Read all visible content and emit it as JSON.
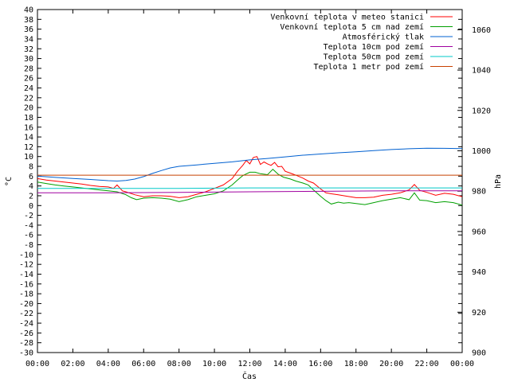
{
  "chart_data": {
    "type": "line",
    "xlabel": "Čas",
    "ylabel": "°C",
    "y2label": "hPa",
    "x_ticks": [
      "00:00",
      "02:00",
      "04:00",
      "06:00",
      "08:00",
      "10:00",
      "12:00",
      "14:00",
      "16:00",
      "18:00",
      "20:00",
      "22:00",
      "00:00"
    ],
    "xlim": [
      0,
      24
    ],
    "ylim": [
      -30,
      40
    ],
    "y_ticks": [
      -30,
      -28,
      -26,
      -24,
      -22,
      -20,
      -18,
      -16,
      -14,
      -12,
      -10,
      -8,
      -6,
      -4,
      -2,
      0,
      2,
      4,
      6,
      8,
      10,
      12,
      14,
      16,
      18,
      20,
      22,
      24,
      26,
      28,
      30,
      32,
      34,
      36,
      38,
      40
    ],
    "y2lim": [
      900,
      1070
    ],
    "y2_ticks": [
      900,
      920,
      940,
      960,
      980,
      1000,
      1020,
      1040,
      1060
    ],
    "grid": false,
    "legend_position": "top-right",
    "series": [
      {
        "name": "Venkovní teplota v meteo stanici",
        "axis": "left",
        "color": "#ff0000",
        "x": [
          0,
          0.5,
          1,
          1.5,
          2,
          2.5,
          3,
          3.5,
          4,
          4.3,
          4.5,
          4.8,
          5,
          5.5,
          6,
          6.5,
          7,
          7.5,
          8,
          8.5,
          9,
          9.5,
          10,
          10.5,
          11,
          11.3,
          11.6,
          11.8,
          12,
          12.2,
          12.4,
          12.6,
          12.8,
          13,
          13.2,
          13.4,
          13.6,
          13.8,
          14,
          14.3,
          14.6,
          15,
          15.3,
          15.6,
          16,
          16.3,
          16.6,
          17,
          17.5,
          18,
          18.5,
          19,
          19.5,
          20,
          20.5,
          21,
          21.3,
          21.6,
          22,
          22.5,
          23,
          23.5,
          24
        ],
        "y": [
          5.5,
          5.2,
          5.0,
          4.8,
          4.6,
          4.4,
          4.1,
          3.9,
          3.8,
          3.5,
          4.2,
          3.0,
          2.8,
          2.2,
          1.8,
          2.0,
          2.0,
          1.9,
          1.6,
          1.8,
          2.3,
          2.8,
          3.5,
          4.2,
          5.5,
          7.0,
          8.2,
          9.2,
          8.5,
          9.8,
          10.0,
          8.4,
          8.9,
          8.5,
          8.2,
          8.8,
          7.9,
          8.0,
          7.0,
          6.6,
          6.2,
          5.6,
          5.0,
          4.6,
          3.4,
          2.6,
          2.4,
          2.2,
          1.9,
          1.6,
          1.6,
          1.7,
          2.1,
          2.3,
          2.6,
          3.2,
          4.3,
          3.1,
          2.7,
          2.1,
          2.5,
          2.3,
          1.8
        ]
      },
      {
        "name": "Venkovní teplota 5 cm nad zemí",
        "axis": "left",
        "color": "#00a000",
        "x": [
          0,
          0.5,
          1,
          1.5,
          2,
          2.5,
          3,
          3.5,
          4,
          4.5,
          5,
          5.3,
          5.6,
          6,
          6.5,
          7,
          7.5,
          8,
          8.5,
          9,
          9.5,
          10,
          10.5,
          11,
          11.3,
          11.6,
          12,
          12.3,
          12.6,
          13,
          13.3,
          13.6,
          13.9,
          14.3,
          14.6,
          15,
          15.3,
          15.6,
          16,
          16.3,
          16.6,
          17,
          17.3,
          17.6,
          18,
          18.5,
          19,
          19.5,
          20,
          20.5,
          21,
          21.3,
          21.6,
          22,
          22.5,
          23,
          23.5,
          24
        ],
        "y": [
          4.8,
          4.5,
          4.2,
          4.0,
          3.8,
          3.6,
          3.4,
          3.2,
          3.0,
          2.8,
          2.2,
          1.6,
          1.2,
          1.5,
          1.6,
          1.5,
          1.3,
          0.8,
          1.2,
          1.8,
          2.1,
          2.4,
          3.0,
          4.2,
          5.2,
          6.1,
          6.8,
          6.8,
          6.5,
          6.3,
          7.4,
          6.4,
          5.8,
          5.4,
          5.0,
          4.6,
          4.2,
          3.2,
          1.9,
          1.0,
          0.3,
          0.7,
          0.5,
          0.6,
          0.4,
          0.2,
          0.6,
          1.0,
          1.3,
          1.6,
          1.2,
          2.6,
          1.1,
          1.0,
          0.6,
          0.8,
          0.6,
          0.1
        ]
      },
      {
        "name": "Atmosférický tlak",
        "axis": "right",
        "color": "#0060d0",
        "x": [
          0,
          1,
          2,
          3,
          4,
          4.5,
          5,
          5.5,
          6,
          6.5,
          7,
          7.5,
          8,
          9,
          10,
          11,
          12,
          13,
          14,
          15,
          16,
          17,
          18,
          19,
          20,
          21,
          22,
          23,
          24
        ],
        "y": [
          987.5,
          986.8,
          986.3,
          985.8,
          985.2,
          985.0,
          985.3,
          986.0,
          987.2,
          988.8,
          990.2,
          991.5,
          992.3,
          993.0,
          993.8,
          994.5,
          995.5,
          996.2,
          997.0,
          997.8,
          998.4,
          999.0,
          999.5,
          1000.1,
          1000.6,
          1001.0,
          1001.3,
          1001.2,
          1001.1
        ]
      },
      {
        "name": "Teplota 10cm pod zemí",
        "axis": "left",
        "color": "#a000a0",
        "x": [
          0,
          4,
          8,
          12,
          16,
          20,
          24
        ],
        "y": [
          2.6,
          2.6,
          2.7,
          2.8,
          2.9,
          3.0,
          3.0
        ]
      },
      {
        "name": "Teplota 50cm pod zemí",
        "axis": "left",
        "color": "#00c8c8",
        "x": [
          0,
          4,
          8,
          12,
          16,
          20,
          24
        ],
        "y": [
          3.5,
          3.5,
          3.5,
          3.6,
          3.6,
          3.6,
          3.6
        ]
      },
      {
        "name": "Teplota 1 metr pod zemí",
        "axis": "left",
        "color": "#c84000",
        "x": [
          0,
          4,
          8,
          12,
          16,
          20,
          24
        ],
        "y": [
          6.2,
          6.2,
          6.2,
          6.2,
          6.2,
          6.2,
          6.2
        ]
      }
    ]
  }
}
